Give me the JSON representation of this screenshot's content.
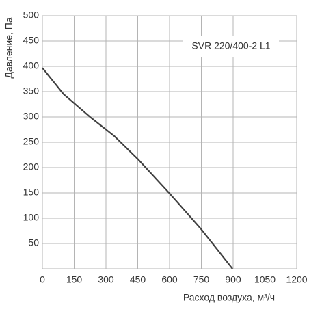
{
  "chart_data": {
    "type": "line",
    "annotation": "SVR 220/400-2 L1",
    "x_label": "Расход воздуха, м³/ч",
    "y_label": "Давление, Па",
    "series": [
      {
        "name": "SVR 220/400-2 L1",
        "color": "#404040",
        "x": [
          0,
          100,
          225,
          340,
          450,
          600,
          750,
          897
        ],
        "values": [
          397,
          345,
          300,
          262,
          217,
          149,
          78,
          0
        ]
      }
    ],
    "xlim": [
      0,
      1200
    ],
    "xticks": [
      0,
      150,
      300,
      450,
      600,
      750,
      900,
      1050,
      1200
    ],
    "ylim": [
      0,
      500
    ],
    "yticks": [
      50,
      100,
      150,
      200,
      250,
      300,
      350,
      400,
      450,
      500
    ],
    "grid": true
  }
}
